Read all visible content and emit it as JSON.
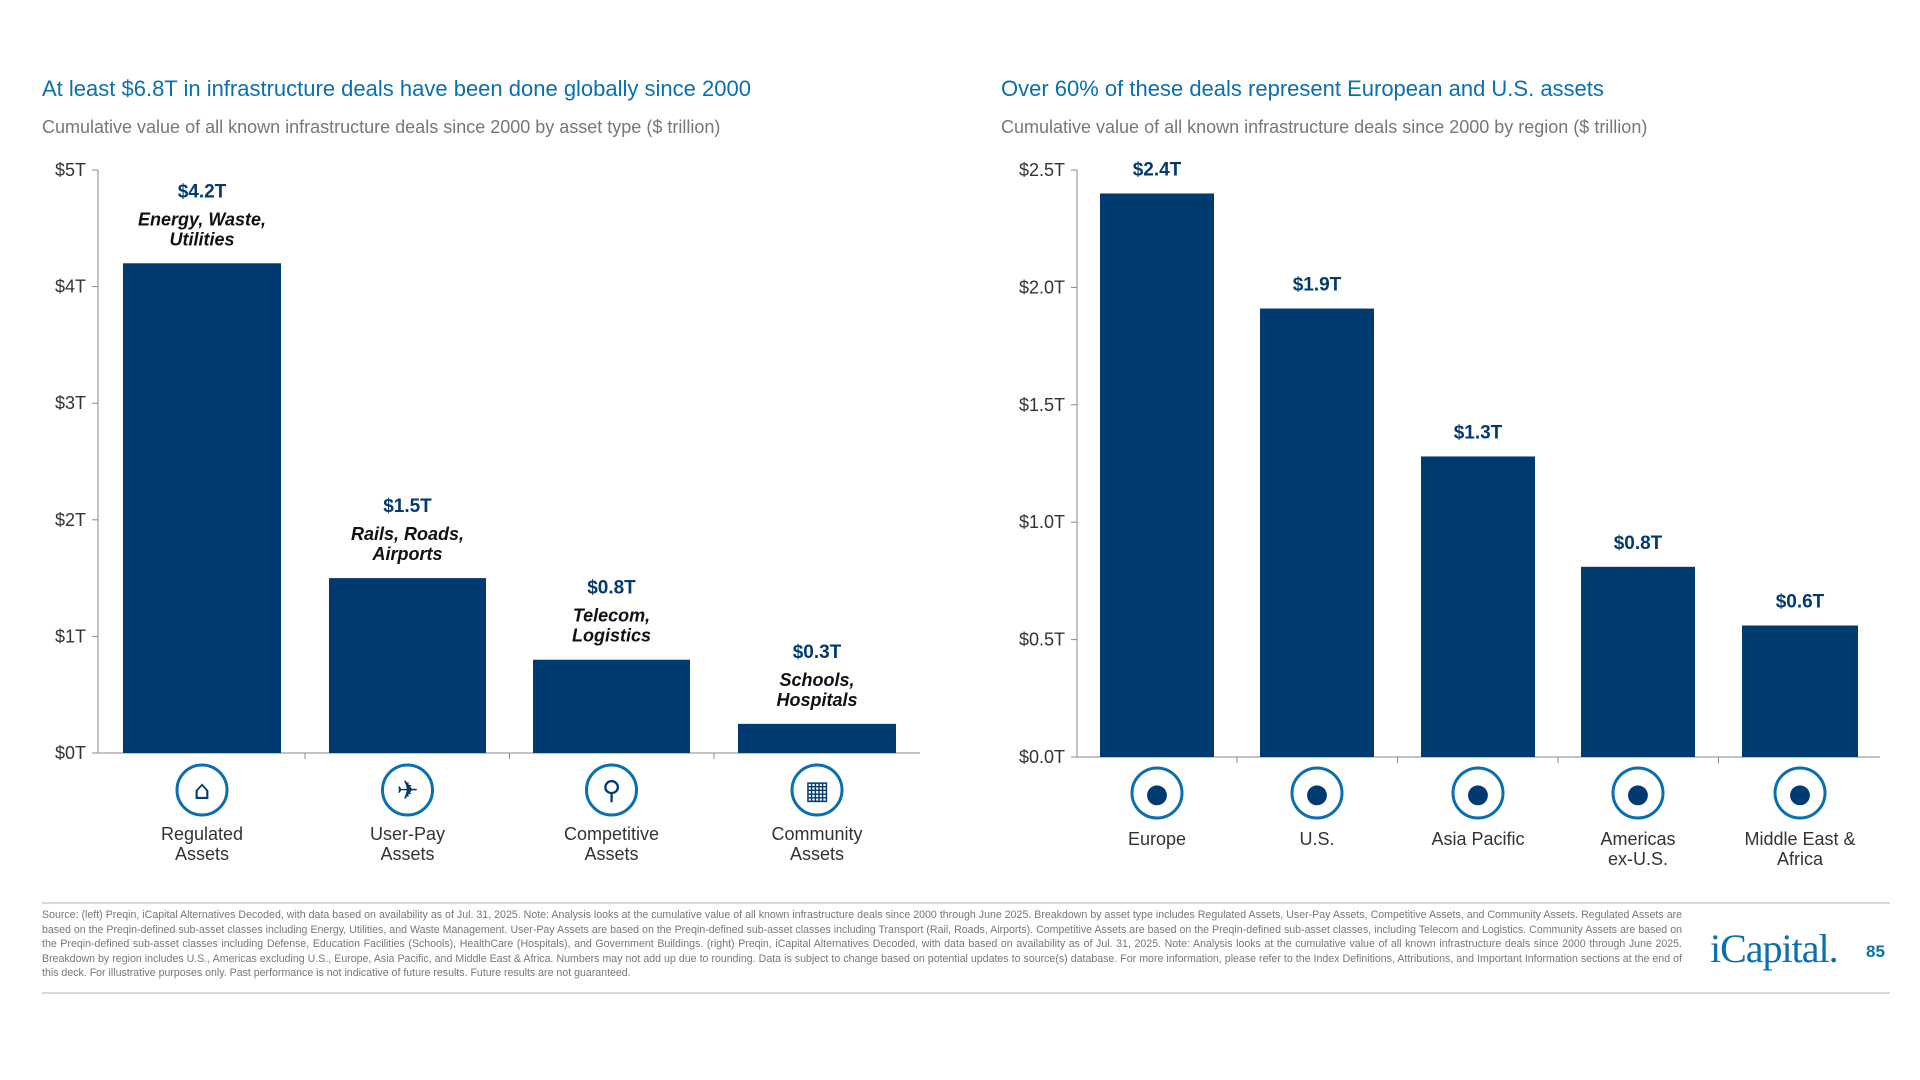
{
  "colors": {
    "bar": "#003a70",
    "title": "#0a6fae",
    "axis": "#888888",
    "icon": "#0a6fae"
  },
  "chart_data": [
    {
      "type": "bar",
      "title": "At least $6.8T in infrastructure deals have been done globally since 2000",
      "subtitle": "Cumulative value of all known infrastructure deals since 2000 by asset type ($ trillion)",
      "categories": [
        "Regulated Assets",
        "User-Pay Assets",
        "Competitive Assets",
        "Community Assets"
      ],
      "category_lines": [
        [
          "Regulated",
          "Assets"
        ],
        [
          "User-Pay",
          "Assets"
        ],
        [
          "Competitive",
          "Assets"
        ],
        [
          "Community",
          "Assets"
        ]
      ],
      "values": [
        4.2,
        1.5,
        0.8,
        0.25
      ],
      "data_labels": [
        "$4.2T",
        "$1.5T",
        "$0.8T",
        "$0.3T"
      ],
      "annotations": [
        [
          "Energy, Waste,",
          "Utilities"
        ],
        [
          "Rails, Roads,",
          "Airports"
        ],
        [
          "Telecom,",
          "Logistics"
        ],
        [
          "Schools,",
          "Hospitals"
        ]
      ],
      "icons": [
        "power-plant-icon",
        "airplane-icon",
        "antenna-tower-icon",
        "school-building-icon"
      ],
      "yticks": [
        0,
        1,
        2,
        3,
        4,
        5
      ],
      "ytick_labels": [
        "$0T",
        "$1T",
        "$2T",
        "$3T",
        "$4T",
        "$5T"
      ],
      "ylim": [
        0,
        5
      ],
      "grid": false
    },
    {
      "type": "bar",
      "title": "Over 60% of these deals represent European and U.S. assets",
      "subtitle": "Cumulative value of all known infrastructure deals since 2000 by region ($ trillion)",
      "categories": [
        "Europe",
        "U.S.",
        "Asia Pacific",
        "Americas ex-U.S.",
        "Middle East & Africa"
      ],
      "category_lines": [
        [
          "Europe"
        ],
        [
          "U.S."
        ],
        [
          "Asia Pacific"
        ],
        [
          "Americas",
          "ex-U.S."
        ],
        [
          "Middle East &",
          "Africa"
        ]
      ],
      "values": [
        2.4,
        1.91,
        1.28,
        0.81,
        0.56
      ],
      "data_labels": [
        "$2.4T",
        "$1.9T",
        "$1.3T",
        "$0.8T",
        "$0.6T"
      ],
      "icons": [
        "europe-map-icon",
        "us-map-icon",
        "asia-pacific-map-icon",
        "americas-map-icon",
        "africa-map-icon"
      ],
      "yticks": [
        0,
        0.5,
        1,
        1.5,
        2,
        2.5
      ],
      "ytick_labels": [
        "$0.0T",
        "$0.5T",
        "$1.0T",
        "$1.5T",
        "$2.0T",
        "$2.5T"
      ],
      "ylim": [
        0,
        2.5
      ],
      "grid": false
    }
  ],
  "footer": {
    "text": "Source: (left) Preqin, iCapital Alternatives Decoded, with data based on availability as of Jul. 31, 2025. Note: Analysis looks at the cumulative value of all known infrastructure deals since 2000 through June 2025. Breakdown by asset type includes Regulated Assets, User-Pay Assets, Competitive Assets, and Community Assets. Regulated Assets are based on the Preqin-defined sub-asset classes including Energy, Utilities, and Waste Management. User-Pay Assets are based on the Preqin-defined sub-asset classes including Transport (Rail, Roads, Airports). Competitive Assets are based on the Preqin-defined sub-asset classes, including Telecom and Logistics. Community Assets are based on the Preqin-defined sub-asset classes including Defense, Education Facilities (Schools), HealthCare (Hospitals), and Government Buildings. (right) Preqin, iCapital Alternatives Decoded, with data based on availability as of Jul. 31, 2025. Note: Analysis looks at the cumulative value of all known infrastructure deals since 2000 through June 2025. Breakdown by region includes U.S., Americas excluding U.S., Europe, Asia Pacific, and Middle East & Africa. Numbers may not add up due to rounding. Data is subject to change based on potential updates to source(s) database. For more information, please refer to the Index Definitions, Attributions, and Important Information sections at the end of this deck. For illustrative purposes only. Past performance is not indicative of future results. Future results are not guaranteed.",
    "logo": "iCapital.",
    "page_number": "85"
  }
}
